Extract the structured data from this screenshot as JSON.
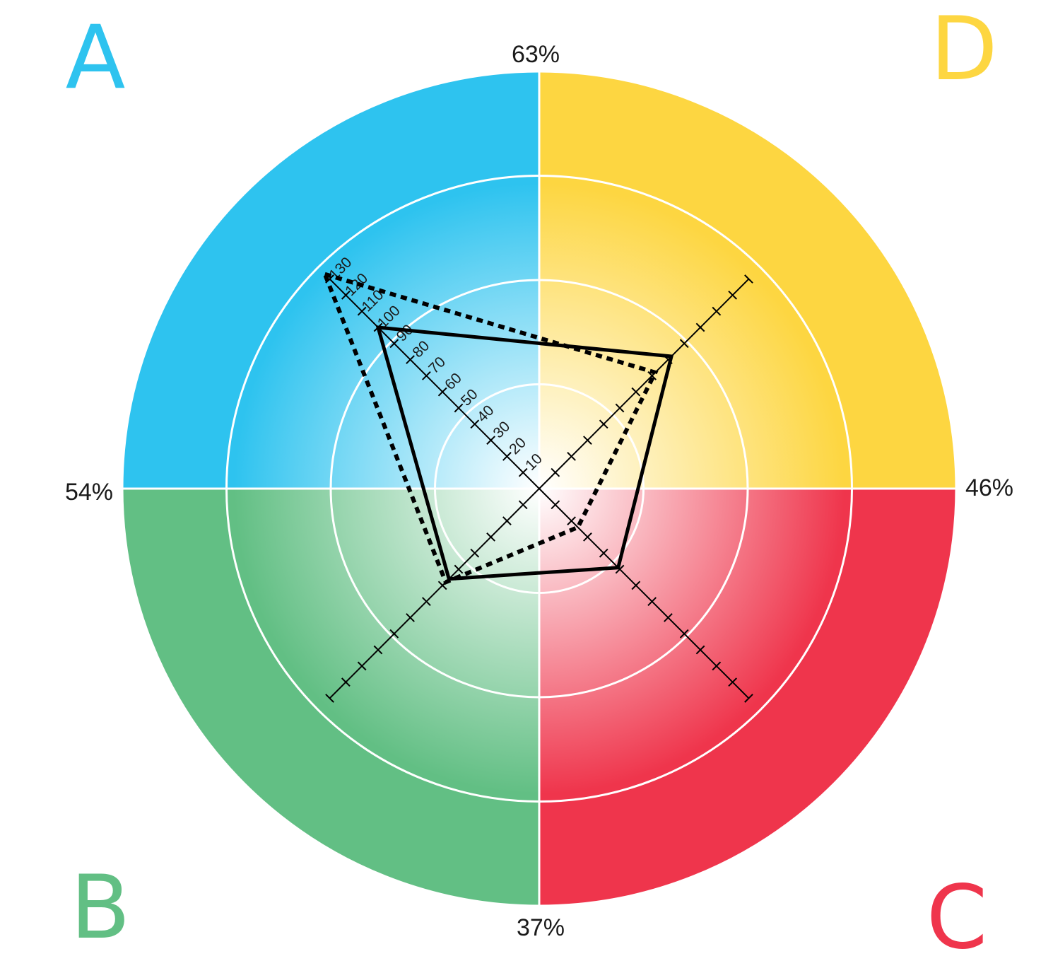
{
  "chart_data": {
    "type": "radar",
    "quadrants": [
      {
        "letter": "A",
        "color": "#2ec3ef"
      },
      {
        "letter": "D",
        "color": "#fdd641"
      },
      {
        "letter": "C",
        "color": "#ef354c"
      },
      {
        "letter": "B",
        "color": "#62bf84"
      }
    ],
    "edge_labels": {
      "top": "63%",
      "right": "46%",
      "bottom": "37%",
      "left": "54%"
    },
    "axes": [
      "A",
      "D",
      "C",
      "B"
    ],
    "axis_range": [
      0,
      130
    ],
    "tick_step": 10,
    "tick_labels": [
      "10",
      "20",
      "30",
      "40",
      "50",
      "60",
      "70",
      "80",
      "90",
      "100",
      "110",
      "120",
      "130"
    ],
    "series": [
      {
        "style": "solid",
        "values": {
          "A": 100,
          "D": 82,
          "C": 49,
          "B": 56
        }
      },
      {
        "style": "dotted",
        "values": {
          "A": 133,
          "D": 72,
          "C": 24,
          "B": 58
        }
      }
    ],
    "rings": 4
  }
}
